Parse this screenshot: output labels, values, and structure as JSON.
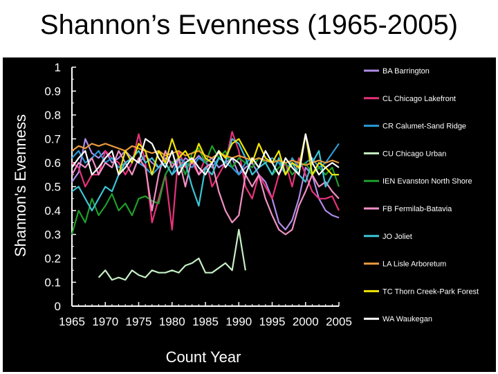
{
  "title": "Shannon’s Evenness (1965-2005)",
  "chart_data": {
    "type": "line",
    "xlabel": "Count Year",
    "ylabel": "Shannon's Evenness",
    "xlim": [
      1965,
      2005
    ],
    "ylim": [
      0,
      1
    ],
    "x_ticks": [
      "1965",
      "1970",
      "1975",
      "1980",
      "1985",
      "1990",
      "1995",
      "2000",
      "2005"
    ],
    "y_ticks": [
      "0",
      "0.1",
      "0.2",
      "0.3",
      "0.4",
      "0.5",
      "0.6",
      "0.7",
      "0.8",
      "0.9",
      "1"
    ],
    "grid": false,
    "legend_position": "right",
    "background": "#000000",
    "series": [
      {
        "name": "BA Barrington",
        "color": "#b08ce8",
        "x": [
          1965,
          1966,
          1967,
          1968,
          1969,
          1970,
          1971,
          1972,
          1973,
          1974,
          1975,
          1976,
          1977,
          1978,
          1979,
          1980,
          1981,
          1982,
          1983,
          1984,
          1985,
          1986,
          1987,
          1988,
          1989,
          1990,
          1991,
          1992,
          1993,
          1994,
          1995,
          1996,
          1997,
          1998,
          1999,
          2000,
          2001,
          2002,
          2003,
          2004,
          2005
        ],
        "y": [
          0.52,
          0.56,
          0.7,
          0.64,
          0.62,
          0.65,
          0.6,
          0.62,
          0.65,
          0.62,
          0.6,
          0.63,
          0.6,
          0.58,
          0.62,
          0.6,
          0.58,
          0.62,
          0.6,
          0.63,
          0.6,
          0.62,
          0.58,
          0.6,
          0.62,
          0.55,
          0.58,
          0.6,
          0.55,
          0.52,
          0.45,
          0.35,
          0.32,
          0.36,
          0.45,
          0.58,
          0.55,
          0.45,
          0.4,
          0.38,
          0.37
        ]
      },
      {
        "name": "CL Chicago Lakefront",
        "color": "#e8327a",
        "x": [
          1965,
          1966,
          1967,
          1968,
          1969,
          1970,
          1971,
          1972,
          1973,
          1974,
          1975,
          1976,
          1977,
          1978,
          1979,
          1980,
          1981,
          1982,
          1983,
          1984,
          1985,
          1986,
          1987,
          1988,
          1989,
          1990,
          1991,
          1992,
          1993,
          1994,
          1995,
          1996,
          1997,
          1998,
          1999,
          2000,
          2001,
          2002,
          2003,
          2004,
          2005
        ],
        "y": [
          0.6,
          0.58,
          0.5,
          0.55,
          0.55,
          0.65,
          0.62,
          0.6,
          0.55,
          0.6,
          0.72,
          0.6,
          0.35,
          0.45,
          0.55,
          0.32,
          0.65,
          0.58,
          0.6,
          0.55,
          0.62,
          0.5,
          0.55,
          0.6,
          0.73,
          0.65,
          0.5,
          0.45,
          0.55,
          0.5,
          0.45,
          0.55,
          0.6,
          0.5,
          0.62,
          0.55,
          0.48,
          0.45,
          0.45,
          0.46,
          0.4
        ]
      },
      {
        "name": "CR Calumet-Sand Ridge",
        "color": "#2b9ad6",
        "x": [
          1965,
          1966,
          1967,
          1968,
          1969,
          1970,
          1971,
          1972,
          1973,
          1974,
          1975,
          1976,
          1977,
          1978,
          1979,
          1980,
          1981,
          1982,
          1983,
          1984,
          1985,
          1986,
          1987,
          1988,
          1989,
          1990,
          1991,
          1992,
          1993,
          1994,
          1995,
          1996,
          1997,
          1998,
          1999,
          2000,
          2001,
          2002,
          2003,
          2004,
          2005
        ],
        "y": [
          0.62,
          0.65,
          0.6,
          0.62,
          0.65,
          0.6,
          0.62,
          0.58,
          0.6,
          0.62,
          0.6,
          0.58,
          0.55,
          0.58,
          0.6,
          0.55,
          0.62,
          0.6,
          0.58,
          0.62,
          0.6,
          0.58,
          0.62,
          0.6,
          0.58,
          0.55,
          0.6,
          0.62,
          0.58,
          0.6,
          0.62,
          0.6,
          0.55,
          0.62,
          0.58,
          0.6,
          0.62,
          0.58,
          0.6,
          0.64,
          0.68
        ]
      },
      {
        "name": "CU Chicago Urban",
        "color": "#c6f0c6",
        "x": [
          1969,
          1970,
          1971,
          1972,
          1973,
          1974,
          1975,
          1976,
          1977,
          1978,
          1979,
          1980,
          1981,
          1982,
          1983,
          1984,
          1985,
          1986,
          1987,
          1988,
          1989,
          1990,
          1991
        ],
        "y": [
          0.12,
          0.15,
          0.11,
          0.12,
          0.11,
          0.15,
          0.13,
          0.12,
          0.15,
          0.14,
          0.14,
          0.15,
          0.14,
          0.17,
          0.18,
          0.2,
          0.14,
          0.14,
          0.16,
          0.18,
          0.15,
          0.32,
          0.15
        ]
      },
      {
        "name": "IEN Evanston North Shore",
        "color": "#1f9e2a",
        "x": [
          1965,
          1966,
          1967,
          1968,
          1969,
          1970,
          1971,
          1972,
          1973,
          1974,
          1975,
          1976,
          1977,
          1978,
          1979,
          1980,
          1981,
          1982,
          1983,
          1984,
          1985,
          1986,
          1987,
          1988,
          1989,
          1990,
          1991,
          1992,
          1993,
          1994,
          1995,
          1996,
          1997,
          1998,
          1999,
          2000,
          2001,
          2002,
          2003,
          2004,
          2005
        ],
        "y": [
          0.3,
          0.4,
          0.35,
          0.45,
          0.38,
          0.42,
          0.47,
          0.4,
          0.43,
          0.38,
          0.45,
          0.46,
          0.44,
          0.43,
          0.55,
          0.6,
          0.62,
          0.55,
          0.64,
          0.66,
          0.6,
          0.67,
          0.62,
          0.65,
          0.58,
          0.62,
          0.6,
          0.58,
          0.62,
          0.6,
          0.55,
          0.58,
          0.6,
          0.55,
          0.58,
          0.6,
          0.55,
          0.58,
          0.55,
          0.58,
          0.5
        ]
      },
      {
        "name": "FB Fermilab-Batavia",
        "color": "#f291c6",
        "x": [
          1965,
          1966,
          1967,
          1968,
          1969,
          1970,
          1971,
          1972,
          1973,
          1974,
          1975,
          1976,
          1977,
          1978,
          1979,
          1980,
          1981,
          1982,
          1983,
          1984,
          1985,
          1986,
          1987,
          1988,
          1989,
          1990,
          1991,
          1992,
          1993,
          1994,
          1995,
          1996,
          1997,
          1998,
          1999,
          2000,
          2001,
          2002,
          2003,
          2004,
          2005
        ],
        "y": [
          0.55,
          0.6,
          0.58,
          0.62,
          0.55,
          0.6,
          0.58,
          0.65,
          0.6,
          0.55,
          0.62,
          0.58,
          0.4,
          0.55,
          0.65,
          0.58,
          0.62,
          0.5,
          0.62,
          0.55,
          0.58,
          0.6,
          0.48,
          0.4,
          0.35,
          0.38,
          0.55,
          0.5,
          0.55,
          0.45,
          0.38,
          0.32,
          0.3,
          0.32,
          0.42,
          0.48,
          0.55,
          0.5,
          0.52,
          0.48,
          0.45
        ]
      },
      {
        "name": "JO Joliet",
        "color": "#3cc6d6",
        "x": [
          1965,
          1966,
          1967,
          1968,
          1969,
          1970,
          1971,
          1972,
          1973,
          1974,
          1975,
          1976,
          1977,
          1978,
          1979,
          1980,
          1981,
          1982,
          1983,
          1984,
          1985,
          1986,
          1987,
          1988,
          1989,
          1990,
          1991,
          1992,
          1993,
          1994,
          1995,
          1996,
          1997,
          1998,
          1999,
          2000,
          2001,
          2002,
          2003,
          2004,
          2005
        ],
        "y": [
          0.48,
          0.5,
          0.45,
          0.4,
          0.45,
          0.5,
          0.48,
          0.55,
          0.6,
          0.62,
          0.65,
          0.6,
          0.62,
          0.58,
          0.6,
          0.55,
          0.58,
          0.6,
          0.5,
          0.42,
          0.58,
          0.55,
          0.62,
          0.6,
          0.7,
          0.68,
          0.62,
          0.55,
          0.58,
          0.6,
          0.55,
          0.62,
          0.55,
          0.6,
          0.55,
          0.52,
          0.6,
          0.65,
          0.5,
          0.55,
          0.55
        ]
      },
      {
        "name": "LA Lisle Arboretum",
        "color": "#e89a3c",
        "x": [
          1965,
          1966,
          1967,
          1968,
          1969,
          1970,
          1971,
          1972,
          1973,
          1974,
          1975,
          1976,
          1977,
          1978,
          1979,
          1980,
          1981,
          1982,
          1983,
          1984,
          1985,
          1986,
          1987,
          1988,
          1989,
          1990,
          1991,
          1992,
          1993,
          1994,
          1995,
          1996,
          1997,
          1998,
          1999,
          2000,
          2001,
          2002,
          2003,
          2004,
          2005
        ],
        "y": [
          0.65,
          0.67,
          0.66,
          0.68,
          0.67,
          0.68,
          0.67,
          0.66,
          0.65,
          0.67,
          0.66,
          0.65,
          0.64,
          0.65,
          0.63,
          0.64,
          0.65,
          0.63,
          0.64,
          0.65,
          0.63,
          0.62,
          0.64,
          0.63,
          0.62,
          0.63,
          0.62,
          0.61,
          0.62,
          0.61,
          0.6,
          0.61,
          0.6,
          0.61,
          0.6,
          0.59,
          0.6,
          0.61,
          0.6,
          0.61,
          0.6
        ]
      },
      {
        "name": "TC Thorn Creek-Park Forest",
        "color": "#f2e600",
        "x": [
          1972,
          1973,
          1974,
          1975,
          1976,
          1977,
          1978,
          1979,
          1980,
          1981,
          1982,
          1983,
          1984,
          1985,
          1986,
          1987,
          1988,
          1989,
          1990,
          1991,
          1992,
          1993,
          1994,
          1995,
          1996,
          1997,
          1998,
          1999,
          2000,
          2001,
          2002,
          2003,
          2004,
          2005
        ],
        "y": [
          0.55,
          0.65,
          0.6,
          0.68,
          0.65,
          0.55,
          0.65,
          0.6,
          0.7,
          0.62,
          0.65,
          0.6,
          0.68,
          0.62,
          0.6,
          0.65,
          0.62,
          0.68,
          0.7,
          0.65,
          0.6,
          0.68,
          0.62,
          0.6,
          0.65,
          0.55,
          0.6,
          0.58,
          0.72,
          0.55,
          0.6,
          0.58,
          0.55,
          0.55
        ]
      },
      {
        "name": "WA Waukegan",
        "color": "#ffffff",
        "x": [
          1965,
          1966,
          1967,
          1968,
          1969,
          1970,
          1971,
          1972,
          1973,
          1974,
          1975,
          1976,
          1977,
          1978,
          1979,
          1980,
          1981,
          1982,
          1983,
          1984,
          1985,
          1986,
          1987,
          1988,
          1989,
          1990,
          1991,
          1992,
          1993,
          1994,
          1995,
          1996,
          1997,
          1998,
          1999,
          2000,
          2001,
          2002,
          2003,
          2004,
          2005
        ],
        "y": [
          0.58,
          0.62,
          0.65,
          0.55,
          0.58,
          0.62,
          0.65,
          0.55,
          0.58,
          0.62,
          0.6,
          0.7,
          0.68,
          0.62,
          0.58,
          0.65,
          0.55,
          0.6,
          0.62,
          0.58,
          0.55,
          0.6,
          0.65,
          0.58,
          0.62,
          0.6,
          0.55,
          0.62,
          0.58,
          0.65,
          0.6,
          0.55,
          0.62,
          0.58,
          0.55,
          0.72,
          0.6,
          0.55,
          0.58,
          0.6,
          0.58
        ]
      }
    ]
  }
}
